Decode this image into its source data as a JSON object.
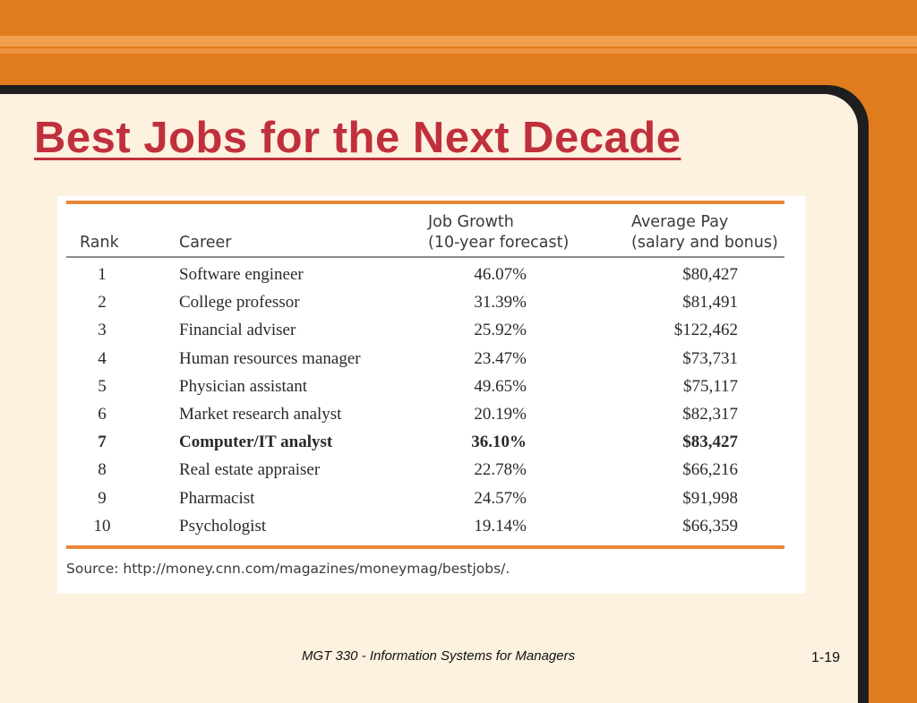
{
  "slide": {
    "title": "Best Jobs for the Next Decade",
    "footer": "MGT 330 - Information Systems for Managers",
    "page_number": "1-19"
  },
  "table": {
    "headers": {
      "rank": "Rank",
      "career": "Career",
      "growth_line1": "Job Growth",
      "growth_line2": "(10-year forecast)",
      "pay_line1": "Average Pay",
      "pay_line2": "(salary and bonus)"
    },
    "rows": [
      {
        "rank": "1",
        "career": "Software engineer",
        "growth": "46.07%",
        "pay": "$80,427",
        "bold": false
      },
      {
        "rank": "2",
        "career": "College professor",
        "growth": "31.39%",
        "pay": "$81,491",
        "bold": false
      },
      {
        "rank": "3",
        "career": "Financial adviser",
        "growth": "25.92%",
        "pay": "$122,462",
        "bold": false
      },
      {
        "rank": "4",
        "career": "Human resources manager",
        "growth": "23.47%",
        "pay": "$73,731",
        "bold": false
      },
      {
        "rank": "5",
        "career": "Physician assistant",
        "growth": "49.65%",
        "pay": "$75,117",
        "bold": false
      },
      {
        "rank": "6",
        "career": "Market research analyst",
        "growth": "20.19%",
        "pay": "$82,317",
        "bold": false
      },
      {
        "rank": "7",
        "career": "Computer/IT analyst",
        "growth": "36.10%",
        "pay": "$83,427",
        "bold": true
      },
      {
        "rank": "8",
        "career": "Real estate appraiser",
        "growth": "22.78%",
        "pay": "$66,216",
        "bold": false
      },
      {
        "rank": "9",
        "career": "Pharmacist",
        "growth": "24.57%",
        "pay": "$91,998",
        "bold": false
      },
      {
        "rank": "10",
        "career": "Psychologist",
        "growth": "19.14%",
        "pay": "$66,359",
        "bold": false
      }
    ],
    "source": "Source: http://money.cnn.com/magazines/moneymag/bestjobs/."
  },
  "colors": {
    "background": "#e07c1e",
    "panel": "#fdf1e0",
    "title": "#c0303c",
    "table_rule": "#e8873a"
  }
}
